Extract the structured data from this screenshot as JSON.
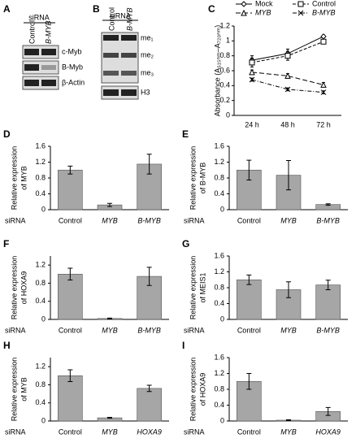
{
  "blots": [
    {
      "panel": "A",
      "header": "siRNA",
      "lanes": [
        "Control",
        "B-MYB"
      ],
      "rows": [
        "c-Myb",
        "B-Myb",
        "β-Actin"
      ]
    },
    {
      "panel": "B",
      "header": "siRNA",
      "lanes": [
        "Control",
        "B-MYB"
      ],
      "rows": [
        "me₁",
        "me₂",
        "me₃",
        "H3"
      ]
    }
  ],
  "chart_data": [
    {
      "type": "line",
      "panel": "C",
      "ylabel": "Absorbance (A₅₁₅ₙₘ–A₇₂₀ₙₘ)",
      "categories": [
        "24 h",
        "48 h",
        "72 h"
      ],
      "ylim": [
        0,
        1.2
      ],
      "yticks": [
        0,
        0.2,
        0.4,
        0.6,
        0.8,
        1,
        1.2
      ],
      "grid": false,
      "series": [
        {
          "name": "Mock",
          "color": "#000000",
          "marker": "diamond",
          "dash": "solid",
          "values": [
            0.74,
            0.83,
            1.06
          ],
          "errors": [
            0.06,
            0.06,
            0.02
          ]
        },
        {
          "name": "Control",
          "color": "#000000",
          "marker": "square",
          "dash": "dash",
          "values": [
            0.71,
            0.8,
            0.99
          ],
          "errors": [
            0.06,
            0.06,
            0.02
          ]
        },
        {
          "name": "MYB",
          "color": "#000000",
          "marker": "triangle",
          "dash": "longdash",
          "values": [
            0.58,
            0.53,
            0.41
          ],
          "errors": [
            0.03,
            0.03,
            0.03
          ]
        },
        {
          "name": "B-MYB",
          "color": "#000000",
          "marker": "x",
          "dash": "dashdot",
          "values": [
            0.48,
            0.35,
            0.31
          ],
          "errors": [
            0.02,
            0.02,
            0.02
          ]
        }
      ]
    },
    {
      "type": "bar",
      "panel": "D",
      "ylabel": [
        "Relative expression",
        "of MYB"
      ],
      "xlabel": "siRNA",
      "categories": [
        "Control",
        "MYB",
        "B-MYB"
      ],
      "values": [
        1.0,
        0.12,
        1.15
      ],
      "errors": [
        0.1,
        0.04,
        0.25
      ],
      "color": "#a6a6a6",
      "ylim": [
        0,
        1.6
      ],
      "yticks": [
        0,
        0.4,
        0.8,
        1.2,
        1.6
      ]
    },
    {
      "type": "bar",
      "panel": "E",
      "ylabel": [
        "Relative expression",
        "of B-MYB"
      ],
      "xlabel": "siRNA",
      "categories": [
        "Control",
        "MYB",
        "B-MYB"
      ],
      "values": [
        1.0,
        0.87,
        0.13
      ],
      "errors": [
        0.25,
        0.37,
        0.02
      ],
      "color": "#a6a6a6",
      "ylim": [
        0,
        1.6
      ],
      "yticks": [
        0,
        0.4,
        0.8,
        1.2,
        1.6
      ]
    },
    {
      "type": "bar",
      "panel": "F",
      "ylabel": [
        "Relative expression",
        "of HOXA9"
      ],
      "xlabel": "siRNA",
      "categories": [
        "Control",
        "MYB",
        "B-MYB"
      ],
      "values": [
        1.0,
        0.02,
        0.95
      ],
      "errors": [
        0.13,
        0.01,
        0.2
      ],
      "color": "#a6a6a6",
      "ylim": [
        0,
        1.4
      ],
      "yticks": [
        0,
        0.4,
        0.8,
        1.2
      ]
    },
    {
      "type": "bar",
      "panel": "G",
      "ylabel": [
        "Relative expression",
        "of MEIS1"
      ],
      "xlabel": "siRNA",
      "categories": [
        "Control",
        "MYB",
        "B-MYB"
      ],
      "values": [
        1.0,
        0.75,
        0.87
      ],
      "errors": [
        0.12,
        0.2,
        0.12
      ],
      "color": "#a6a6a6",
      "ylim": [
        0,
        1.6
      ],
      "yticks": [
        0,
        0.4,
        0.8,
        1.2,
        1.6
      ]
    },
    {
      "type": "bar",
      "panel": "H",
      "ylabel": [
        "Relative expression",
        "of MYB"
      ],
      "xlabel": "siRNA",
      "categories": [
        "Control",
        "MYB",
        "HOXA9"
      ],
      "values": [
        1.0,
        0.07,
        0.72
      ],
      "errors": [
        0.13,
        0.01,
        0.07
      ],
      "color": "#a6a6a6",
      "ylim": [
        0,
        1.4
      ],
      "yticks": [
        0,
        0.4,
        0.8,
        1.2
      ]
    },
    {
      "type": "bar",
      "panel": "I",
      "ylabel": [
        "Relative expression",
        "of HOXA9"
      ],
      "xlabel": "siRNA",
      "categories": [
        "Control",
        "MYB",
        "HOXA9"
      ],
      "values": [
        1.0,
        0.02,
        0.24
      ],
      "errors": [
        0.2,
        0.01,
        0.1
      ],
      "color": "#a6a6a6",
      "ylim": [
        0,
        1.6
      ],
      "yticks": [
        0,
        0.4,
        0.8,
        1.2,
        1.6
      ]
    }
  ]
}
